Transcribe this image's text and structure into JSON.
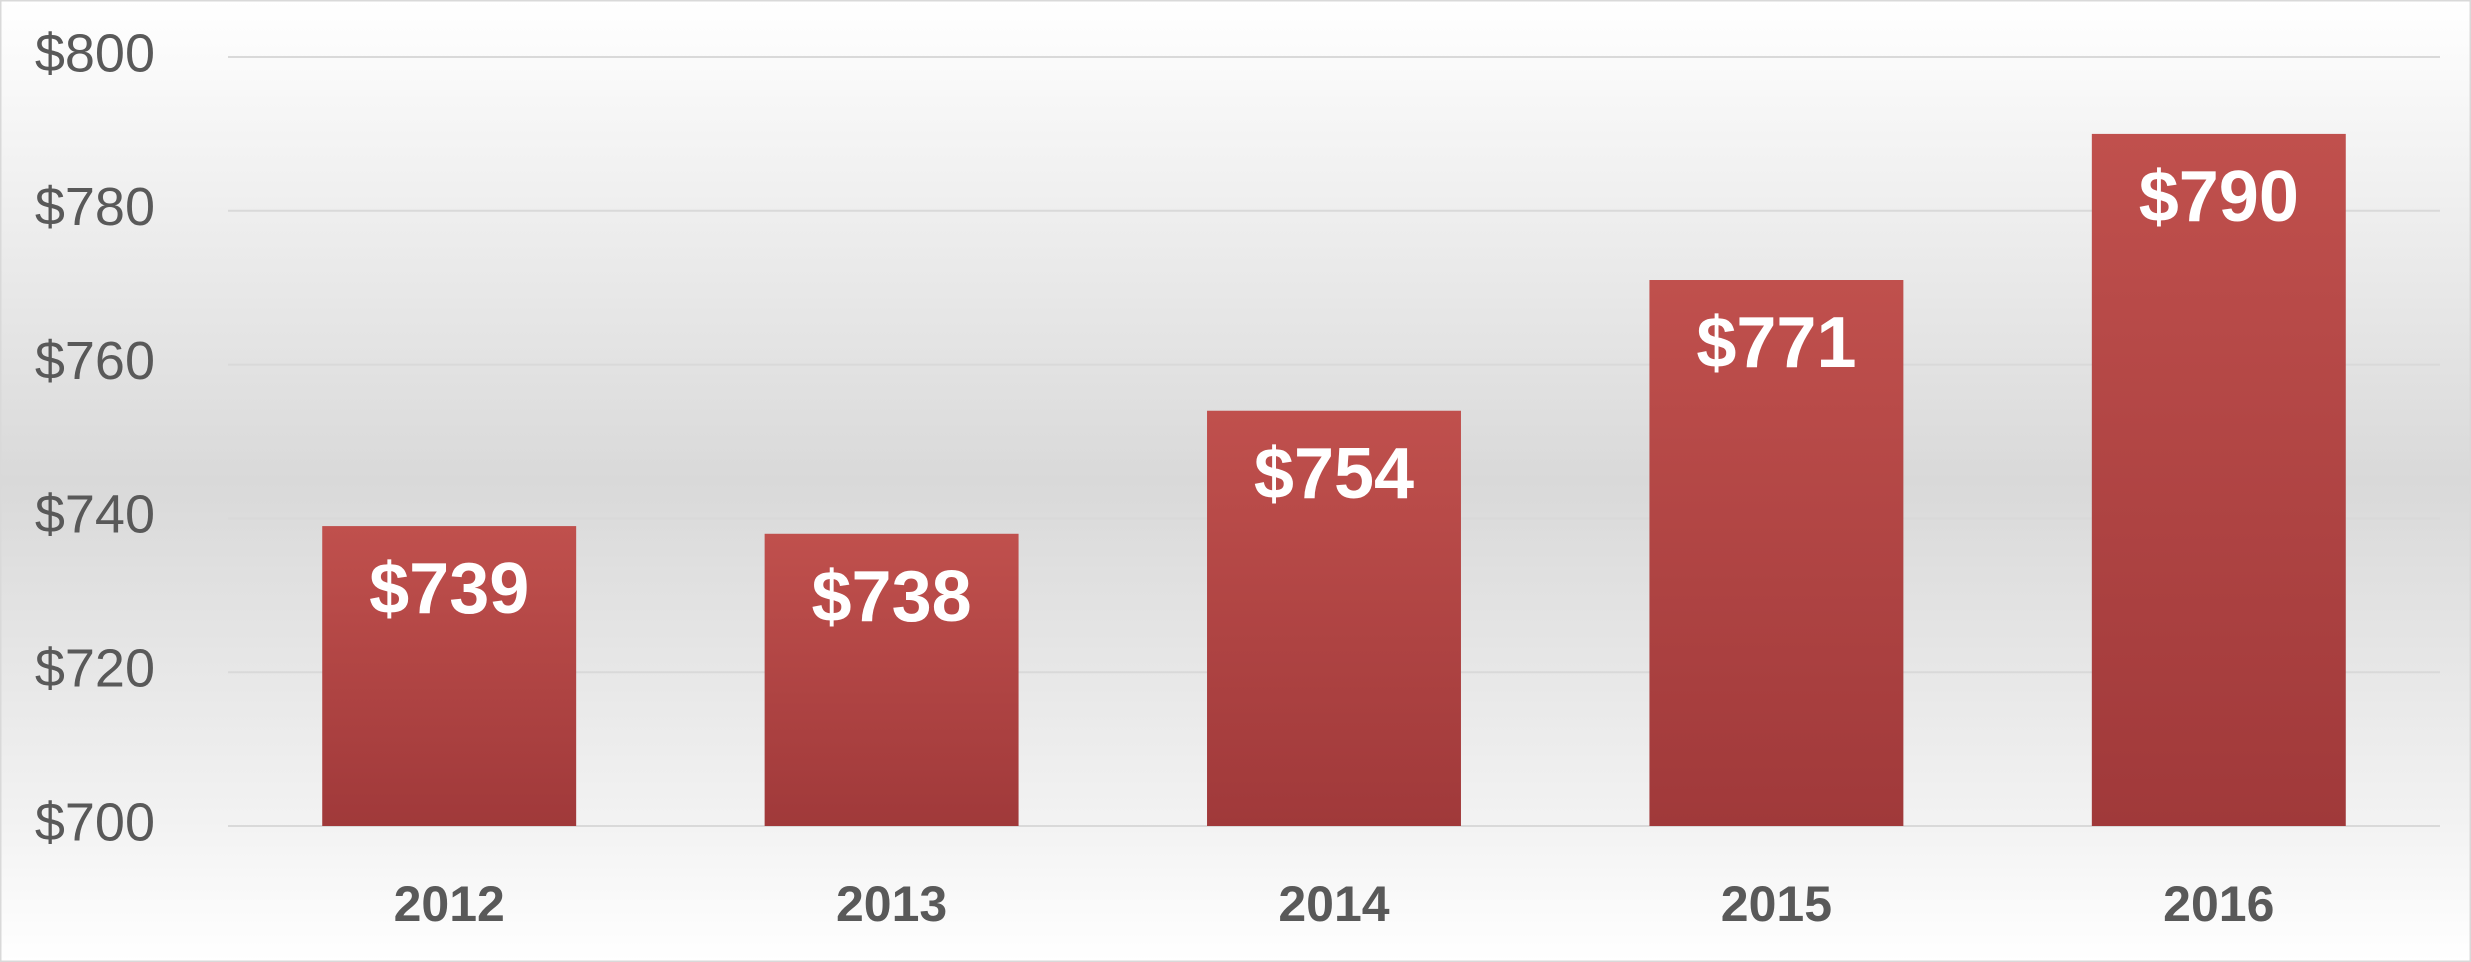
{
  "chart_data": {
    "type": "bar",
    "categories": [
      "2012",
      "2013",
      "2014",
      "2015",
      "2016"
    ],
    "values": [
      739,
      738,
      754,
      771,
      790
    ],
    "value_labels": [
      "$739",
      "$738",
      "$754",
      "$771",
      "$790"
    ],
    "color": "#c0504d",
    "ylim": [
      700,
      800
    ],
    "yticks": [
      {
        "value": 700,
        "label": "$700"
      },
      {
        "value": 720,
        "label": "$720"
      },
      {
        "value": 740,
        "label": "$740"
      },
      {
        "value": 760,
        "label": "$760"
      },
      {
        "value": 780,
        "label": "$780"
      },
      {
        "value": 800,
        "label": "$800"
      }
    ],
    "grid": true
  }
}
